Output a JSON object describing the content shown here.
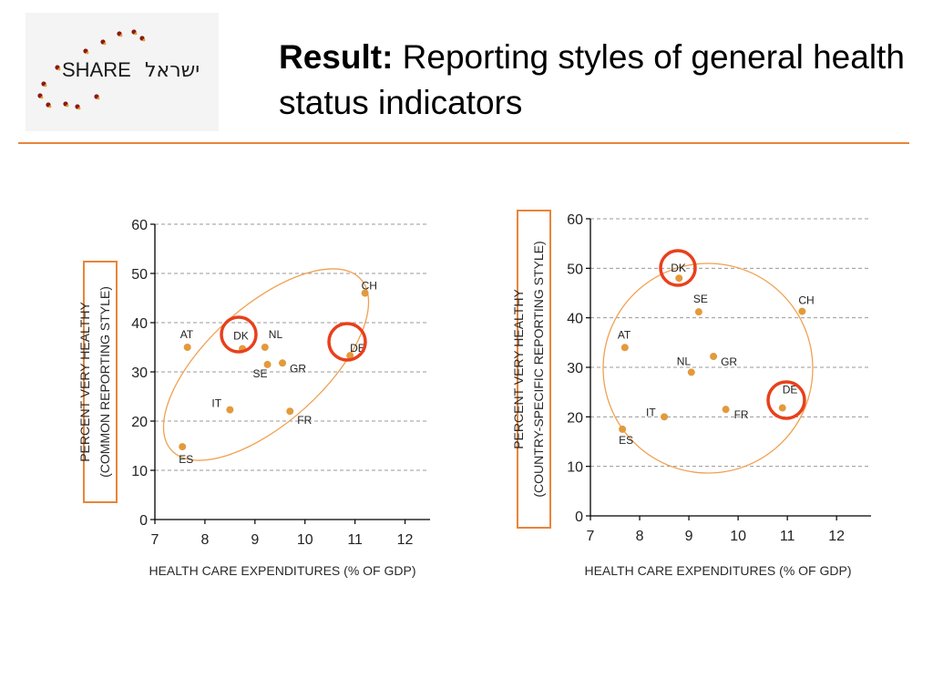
{
  "logo": {
    "text": "SHARE",
    "hebrew": "ישראל"
  },
  "title": {
    "bold": "Result:",
    "rest": " Reporting styles of general health status indicators"
  },
  "colors": {
    "accent": "#e8853a",
    "point": "#e39a3c",
    "highlight": "#e8401c",
    "ellipse": "#f0a050"
  },
  "chart_data": [
    {
      "type": "scatter",
      "title": "",
      "xlabel": "HEALTH CARE EXPENDITURES (% OF GDP)",
      "ylabel_line1": "PERCENT VERY HEALTHY",
      "ylabel_line2": "(COMMON REPORTING STYLE)",
      "xlim": [
        7,
        12.5
      ],
      "ylim": [
        0,
        60
      ],
      "xticks": [
        7,
        8,
        9,
        10,
        11,
        12
      ],
      "yticks": [
        0,
        10,
        20,
        30,
        40,
        50,
        60
      ],
      "grid": "horizontal dashed",
      "points": [
        {
          "label": "AT",
          "x": 7.65,
          "y": 35
        },
        {
          "label": "DK",
          "x": 8.75,
          "y": 34.7
        },
        {
          "label": "NL",
          "x": 9.2,
          "y": 35
        },
        {
          "label": "SE",
          "x": 9.25,
          "y": 31.5
        },
        {
          "label": "GR",
          "x": 9.55,
          "y": 31.8
        },
        {
          "label": "IT",
          "x": 8.5,
          "y": 22.3
        },
        {
          "label": "FR",
          "x": 9.7,
          "y": 22
        },
        {
          "label": "ES",
          "x": 7.55,
          "y": 14.8
        },
        {
          "label": "DE",
          "x": 10.9,
          "y": 33.3
        },
        {
          "label": "CH",
          "x": 11.2,
          "y": 46
        }
      ],
      "highlighted": [
        "DK",
        "DE"
      ]
    },
    {
      "type": "scatter",
      "title": "",
      "xlabel": "HEALTH CARE EXPENDITURES (% OF GDP)",
      "ylabel_line1": "PERCENT VERY HEALTHY",
      "ylabel_line2": "(COUNTRY-SPECIFIC REPORTING STYLE)",
      "xlim": [
        7,
        12.7
      ],
      "ylim": [
        0,
        60
      ],
      "xticks": [
        7,
        8,
        9,
        10,
        11,
        12
      ],
      "yticks": [
        0,
        10,
        20,
        30,
        40,
        50,
        60
      ],
      "grid": "horizontal dashed",
      "points": [
        {
          "label": "DK",
          "x": 8.8,
          "y": 48
        },
        {
          "label": "SE",
          "x": 9.2,
          "y": 41.2
        },
        {
          "label": "CH",
          "x": 11.3,
          "y": 41.3
        },
        {
          "label": "AT",
          "x": 7.7,
          "y": 34
        },
        {
          "label": "NL",
          "x": 9.05,
          "y": 29
        },
        {
          "label": "GR",
          "x": 9.5,
          "y": 32.2
        },
        {
          "label": "IT",
          "x": 8.5,
          "y": 20
        },
        {
          "label": "FR",
          "x": 9.75,
          "y": 21.5
        },
        {
          "label": "DE",
          "x": 10.9,
          "y": 21.8
        },
        {
          "label": "ES",
          "x": 7.65,
          "y": 17.5
        }
      ],
      "highlighted": [
        "DK",
        "DE"
      ]
    }
  ]
}
